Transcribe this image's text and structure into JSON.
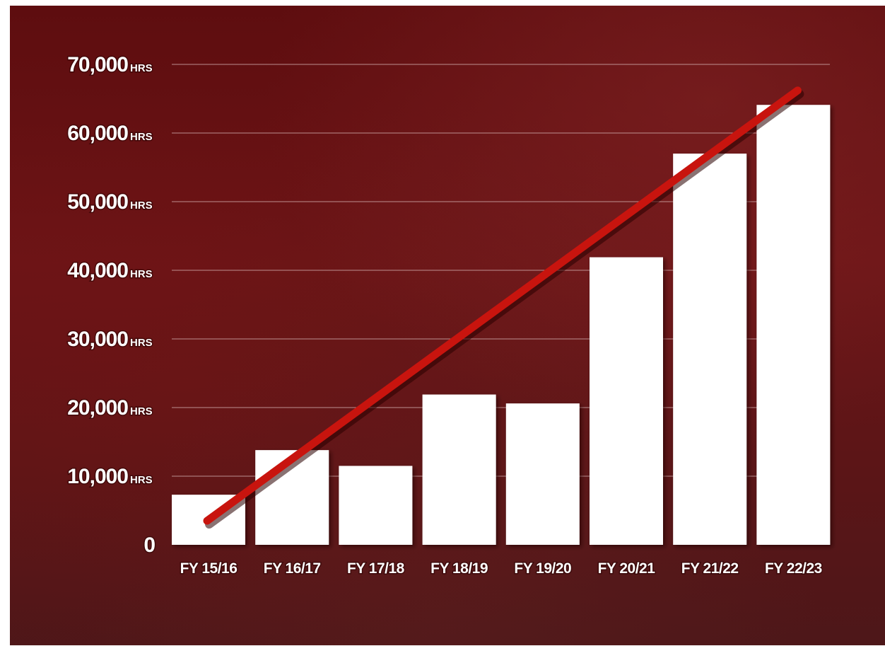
{
  "chart_data": {
    "type": "bar",
    "categories": [
      "FY 15/16",
      "FY 16/17",
      "FY 17/18",
      "FY 18/19",
      "FY 19/20",
      "FY 20/21",
      "FY 21/22",
      "FY 22/23"
    ],
    "values": [
      7300,
      13800,
      11500,
      21900,
      20600,
      41900,
      57000,
      64100
    ],
    "ylim": [
      0,
      70000
    ],
    "yticks": [
      {
        "value": 70000,
        "label": "70,000",
        "unit": "HRS"
      },
      {
        "value": 60000,
        "label": "60,000",
        "unit": "HRS"
      },
      {
        "value": 50000,
        "label": "50,000",
        "unit": "HRS"
      },
      {
        "value": 40000,
        "label": "40,000",
        "unit": "HRS"
      },
      {
        "value": 30000,
        "label": "30,000",
        "unit": "HRS"
      },
      {
        "value": 20000,
        "label": "20,000",
        "unit": "HRS"
      },
      {
        "value": 10000,
        "label": "10,000",
        "unit": "HRS"
      },
      {
        "value": 0,
        "label": "0",
        "unit": ""
      }
    ],
    "trendline": {
      "start": {
        "category": "FY 15/16",
        "y": 3500
      },
      "end": {
        "category": "FY 22/23",
        "y": 66200
      }
    },
    "grid": true,
    "legend": "none",
    "title": "",
    "xlabel": "",
    "ylabel": "",
    "colors": {
      "bar": "#ffffff",
      "trend": "#c8140e",
      "grid": "#d9b9b9",
      "text": "#ffffff"
    }
  }
}
